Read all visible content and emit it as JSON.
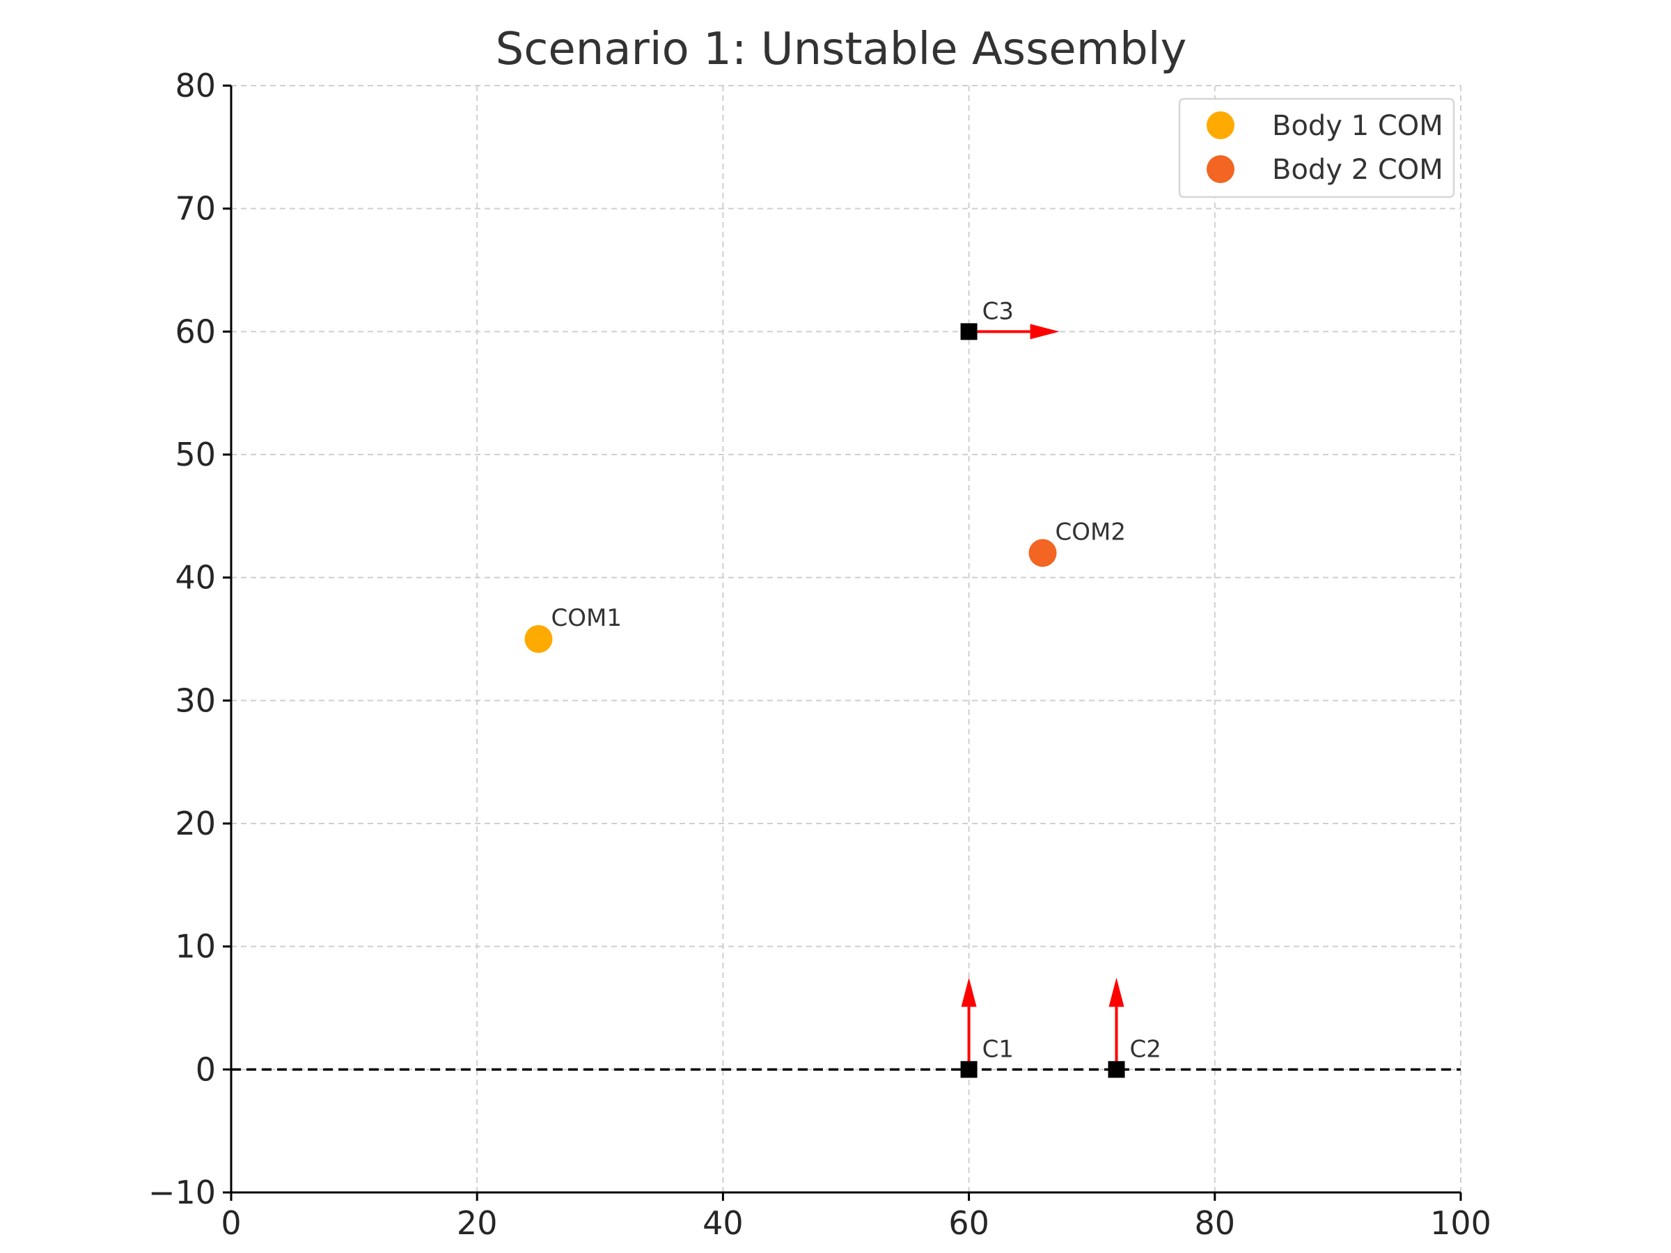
{
  "chart_data": {
    "type": "scatter",
    "title": "Scenario 1: Unstable Assembly",
    "xlabel": "",
    "ylabel": "",
    "xlim": [
      0,
      100
    ],
    "ylim": [
      -10,
      80
    ],
    "xticks": [
      "0",
      "20",
      "40",
      "60",
      "80",
      "100"
    ],
    "yticks": [
      "−10",
      "0",
      "10",
      "20",
      "30",
      "40",
      "50",
      "60",
      "70",
      "80"
    ],
    "grid": true,
    "legend_position": "top-right",
    "series": [
      {
        "name": "Body 1 COM",
        "color": "#FFAA00",
        "points": [
          {
            "x": 25,
            "y": 35,
            "label": "COM1"
          }
        ]
      },
      {
        "name": "Body 2 COM",
        "color": "#F26522",
        "points": [
          {
            "x": 66,
            "y": 42,
            "label": "COM2"
          }
        ]
      }
    ],
    "contacts": [
      {
        "label": "C1",
        "x": 60,
        "y": 0,
        "direction": "up"
      },
      {
        "label": "C2",
        "x": 72,
        "y": 0,
        "direction": "up"
      },
      {
        "label": "C3",
        "x": 60,
        "y": 60,
        "direction": "right"
      }
    ],
    "ground_line": {
      "y": 0
    },
    "colors": {
      "contact_marker": "#000000",
      "force_arrow": "#FF0000",
      "ground_line": "#000000"
    }
  }
}
